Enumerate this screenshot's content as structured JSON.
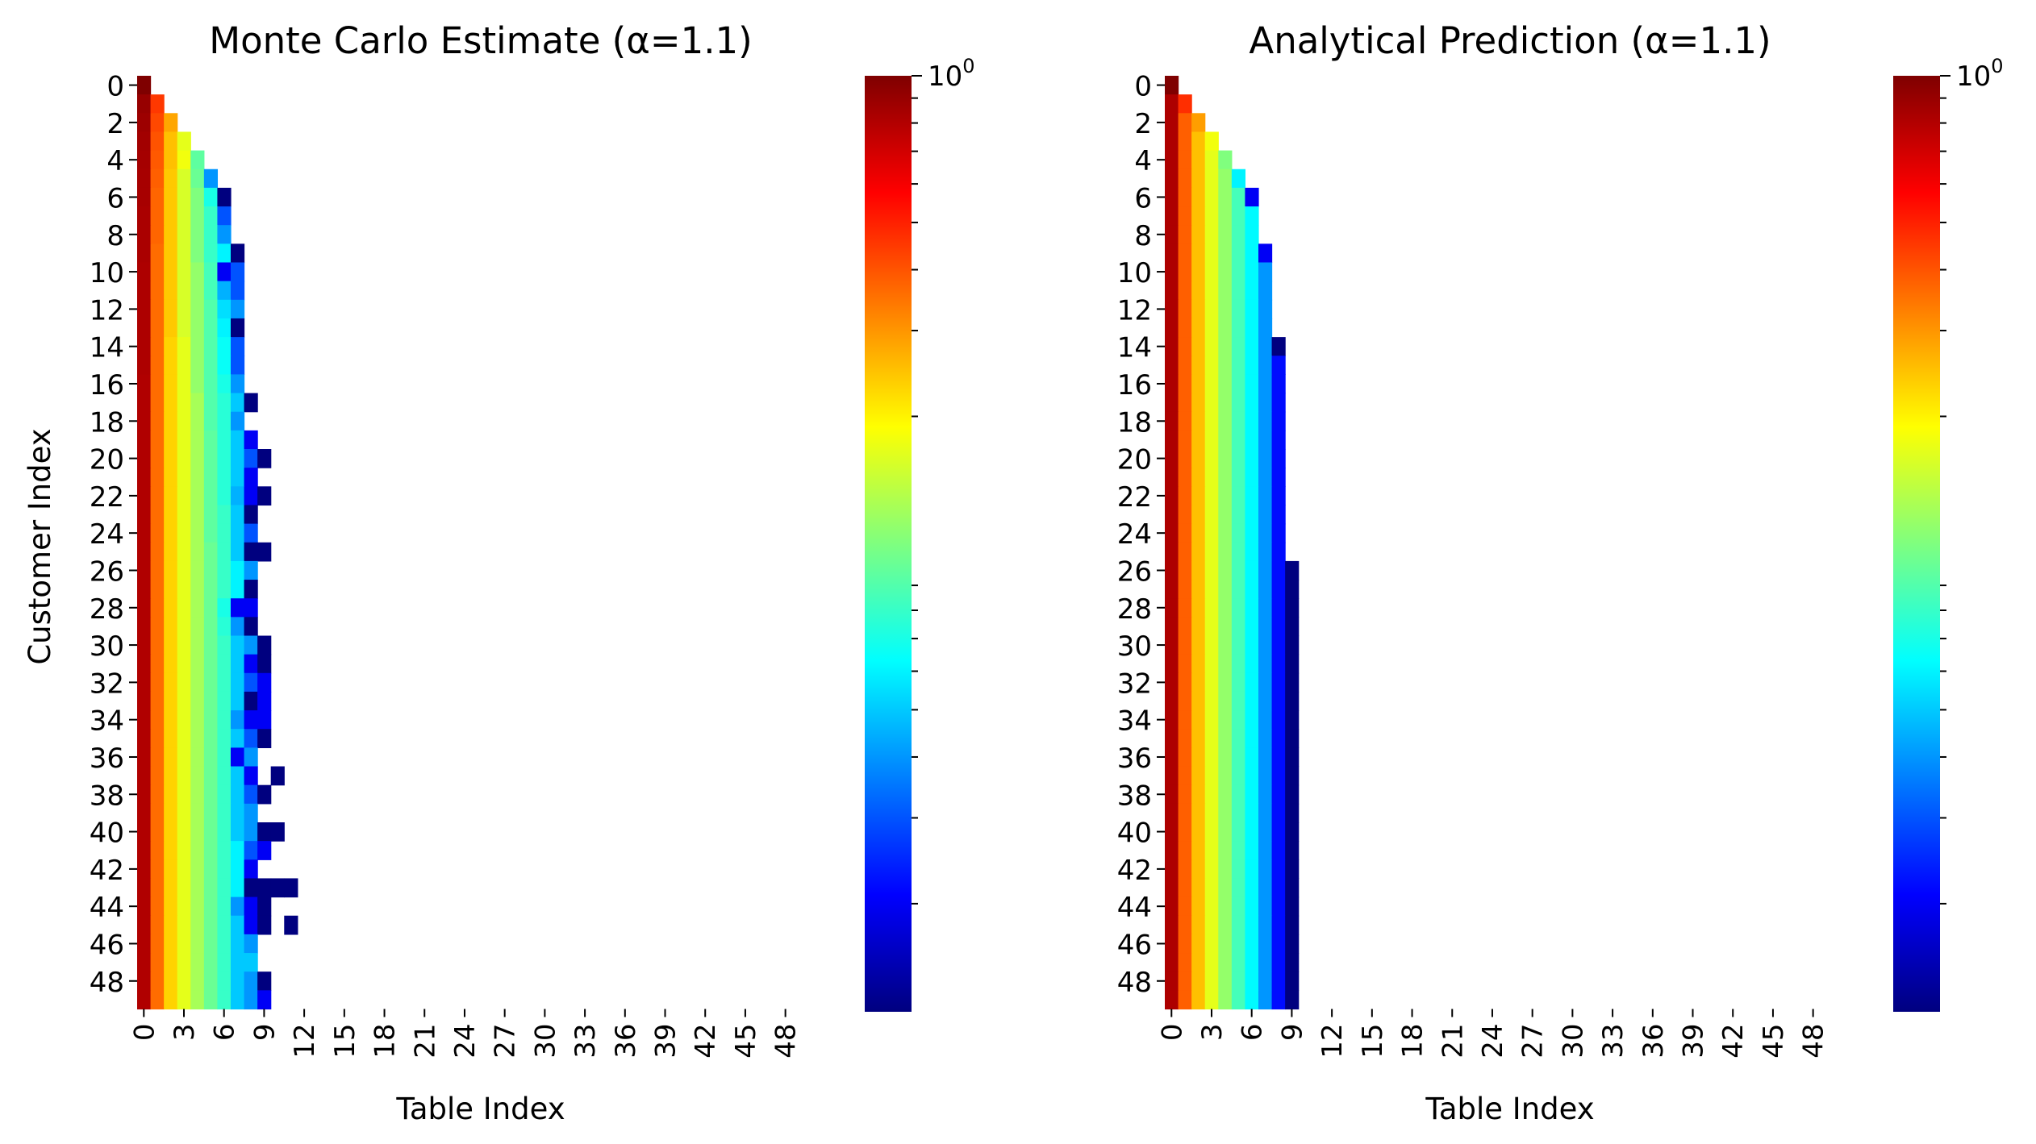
{
  "colormap": [
    "#00007f",
    "#0000ff",
    "#007fff",
    "#00ffff",
    "#7fff7f",
    "#ffff00",
    "#ff7f00",
    "#ff0000",
    "#7f0000"
  ],
  "mask_color": "#ffffff",
  "chart_data": [
    {
      "type": "heatmap",
      "title": "Monte Carlo Estimate (α=1.1)",
      "xlabel": "Table Index",
      "ylabel": "Customer Index",
      "x_ticks": [
        0,
        3,
        6,
        9,
        12,
        15,
        18,
        21,
        24,
        27,
        30,
        33,
        36,
        39,
        42,
        45,
        48
      ],
      "y_ticks": [
        0,
        2,
        4,
        6,
        8,
        10,
        12,
        14,
        16,
        18,
        20,
        22,
        24,
        26,
        28,
        30,
        32,
        34,
        36,
        38,
        40,
        42,
        44,
        46,
        48
      ],
      "n_rows": 50,
      "n_cols": 50,
      "color_scale": "log",
      "colorbar_label": "10^0",
      "values": [
        [
          1.0
        ],
        [
          0.9,
          0.45
        ],
        [
          0.88,
          0.42,
          0.28
        ],
        [
          0.86,
          0.4,
          0.25,
          0.17
        ],
        [
          0.85,
          0.39,
          0.25,
          0.18,
          0.095
        ],
        [
          0.84,
          0.38,
          0.24,
          0.16,
          0.1,
          0.04
        ],
        [
          0.84,
          0.37,
          0.24,
          0.16,
          0.11,
          0.07,
          0.012
        ],
        [
          0.83,
          0.37,
          0.24,
          0.16,
          0.11,
          0.08,
          0.03
        ],
        [
          0.83,
          0.37,
          0.24,
          0.16,
          0.11,
          0.08,
          0.04
        ],
        [
          0.83,
          0.36,
          0.24,
          0.16,
          0.11,
          0.08,
          0.06,
          0.012
        ],
        [
          0.82,
          0.36,
          0.24,
          0.16,
          0.12,
          0.085,
          0.02,
          0.03
        ],
        [
          0.82,
          0.36,
          0.24,
          0.16,
          0.12,
          0.085,
          0.045,
          0.03
        ],
        [
          0.82,
          0.36,
          0.24,
          0.16,
          0.12,
          0.09,
          0.055,
          0.04
        ],
        [
          0.82,
          0.36,
          0.24,
          0.16,
          0.12,
          0.09,
          0.06,
          0.012
        ],
        [
          0.82,
          0.36,
          0.23,
          0.17,
          0.12,
          0.09,
          0.065,
          0.03
        ],
        [
          0.82,
          0.36,
          0.23,
          0.17,
          0.12,
          0.09,
          0.065,
          0.03
        ],
        [
          0.81,
          0.36,
          0.23,
          0.17,
          0.12,
          0.09,
          0.07,
          0.04
        ],
        [
          0.81,
          0.36,
          0.23,
          0.17,
          0.13,
          0.09,
          0.075,
          0.05,
          0.012
        ],
        [
          0.81,
          0.36,
          0.23,
          0.17,
          0.13,
          0.09,
          0.075,
          0.04
        ],
        [
          0.81,
          0.36,
          0.23,
          0.17,
          0.13,
          0.095,
          0.075,
          0.05,
          0.02
        ],
        [
          0.81,
          0.36,
          0.23,
          0.17,
          0.13,
          0.095,
          0.075,
          0.05,
          0.03,
          0.012
        ],
        [
          0.81,
          0.36,
          0.23,
          0.17,
          0.13,
          0.095,
          0.075,
          0.05,
          0.02
        ],
        [
          0.81,
          0.36,
          0.23,
          0.17,
          0.13,
          0.095,
          0.075,
          0.045,
          0.02,
          0.012
        ],
        [
          0.81,
          0.36,
          0.23,
          0.17,
          0.13,
          0.095,
          0.08,
          0.05,
          0.012
        ],
        [
          0.81,
          0.36,
          0.23,
          0.17,
          0.13,
          0.095,
          0.08,
          0.05,
          0.03
        ],
        [
          0.81,
          0.36,
          0.23,
          0.17,
          0.13,
          0.1,
          0.08,
          0.05,
          0.012,
          0.012
        ],
        [
          0.81,
          0.36,
          0.23,
          0.17,
          0.13,
          0.1,
          0.08,
          0.06,
          0.04
        ],
        [
          0.81,
          0.36,
          0.23,
          0.17,
          0.13,
          0.1,
          0.08,
          0.06,
          0.012
        ],
        [
          0.81,
          0.36,
          0.23,
          0.17,
          0.13,
          0.1,
          0.07,
          0.02,
          0.02
        ],
        [
          0.81,
          0.36,
          0.23,
          0.17,
          0.13,
          0.1,
          0.075,
          0.04,
          0.012
        ],
        [
          0.81,
          0.36,
          0.23,
          0.17,
          0.13,
          0.1,
          0.08,
          0.05,
          0.04,
          0.012
        ],
        [
          0.81,
          0.36,
          0.23,
          0.17,
          0.13,
          0.1,
          0.08,
          0.05,
          0.02,
          0.012
        ],
        [
          0.81,
          0.36,
          0.23,
          0.17,
          0.13,
          0.1,
          0.08,
          0.05,
          0.03,
          0.02
        ],
        [
          0.81,
          0.36,
          0.23,
          0.17,
          0.13,
          0.1,
          0.08,
          0.05,
          0.012,
          0.02
        ],
        [
          0.81,
          0.36,
          0.23,
          0.17,
          0.13,
          0.1,
          0.08,
          0.04,
          0.02,
          0.02
        ],
        [
          0.81,
          0.36,
          0.23,
          0.17,
          0.13,
          0.1,
          0.08,
          0.05,
          0.03,
          0.012
        ],
        [
          0.81,
          0.36,
          0.23,
          0.17,
          0.13,
          0.1,
          0.08,
          0.02,
          0.04
        ],
        [
          0.81,
          0.36,
          0.23,
          0.17,
          0.13,
          0.1,
          0.08,
          0.05,
          0.02,
          null,
          0.012
        ],
        [
          0.81,
          0.36,
          0.23,
          0.17,
          0.13,
          0.1,
          0.08,
          0.05,
          0.03,
          0.012
        ],
        [
          0.81,
          0.36,
          0.23,
          0.17,
          0.13,
          0.1,
          0.08,
          0.05,
          0.04
        ],
        [
          0.81,
          0.36,
          0.23,
          0.17,
          0.13,
          0.1,
          0.08,
          0.05,
          0.04,
          0.012,
          0.012
        ],
        [
          0.81,
          0.36,
          0.23,
          0.17,
          0.13,
          0.1,
          0.08,
          0.06,
          0.03,
          0.02
        ],
        [
          0.81,
          0.36,
          0.23,
          0.17,
          0.13,
          0.1,
          0.08,
          0.06,
          0.02
        ],
        [
          0.81,
          0.36,
          0.23,
          0.17,
          0.13,
          0.1,
          0.08,
          0.06,
          0.012,
          0.012,
          0.012,
          0.012
        ],
        [
          0.81,
          0.36,
          0.23,
          0.17,
          0.13,
          0.1,
          0.08,
          0.04,
          0.02,
          0.012
        ],
        [
          0.81,
          0.36,
          0.23,
          0.17,
          0.13,
          0.1,
          0.08,
          0.05,
          0.02,
          0.012,
          null,
          0.012
        ],
        [
          0.81,
          0.36,
          0.23,
          0.17,
          0.13,
          0.1,
          0.08,
          0.05,
          0.04
        ],
        [
          0.81,
          0.36,
          0.23,
          0.17,
          0.13,
          0.1,
          0.08,
          0.05,
          0.05
        ],
        [
          0.81,
          0.36,
          0.23,
          0.17,
          0.13,
          0.1,
          0.08,
          0.05,
          0.04,
          0.012
        ],
        [
          0.81,
          0.36,
          0.23,
          0.17,
          0.13,
          0.1,
          0.08,
          0.05,
          0.04,
          0.02
        ]
      ]
    },
    {
      "type": "heatmap",
      "title": "Analytical Prediction (α=1.1)",
      "xlabel": "Table Index",
      "ylabel": "",
      "x_ticks": [
        0,
        3,
        6,
        9,
        12,
        15,
        18,
        21,
        24,
        27,
        30,
        33,
        36,
        39,
        42,
        45,
        48
      ],
      "y_ticks": [
        0,
        2,
        4,
        6,
        8,
        10,
        12,
        14,
        16,
        18,
        20,
        22,
        24,
        26,
        28,
        30,
        32,
        34,
        36,
        38,
        40,
        42,
        44,
        46,
        48
      ],
      "n_rows": 50,
      "n_cols": 50,
      "color_scale": "log",
      "colorbar_label": "10^0",
      "column_profile": [
        0.82,
        0.38,
        0.25,
        0.17,
        0.12,
        0.085,
        0.062,
        0.04,
        0.022,
        0.012
      ],
      "column_start_rows": [
        0,
        1,
        2,
        3,
        4,
        5,
        6,
        9,
        14,
        26
      ],
      "column_first_values": [
        1.0,
        0.47,
        0.29,
        0.18,
        0.11,
        0.06,
        0.02,
        0.02,
        0.012,
        0.012
      ]
    }
  ]
}
